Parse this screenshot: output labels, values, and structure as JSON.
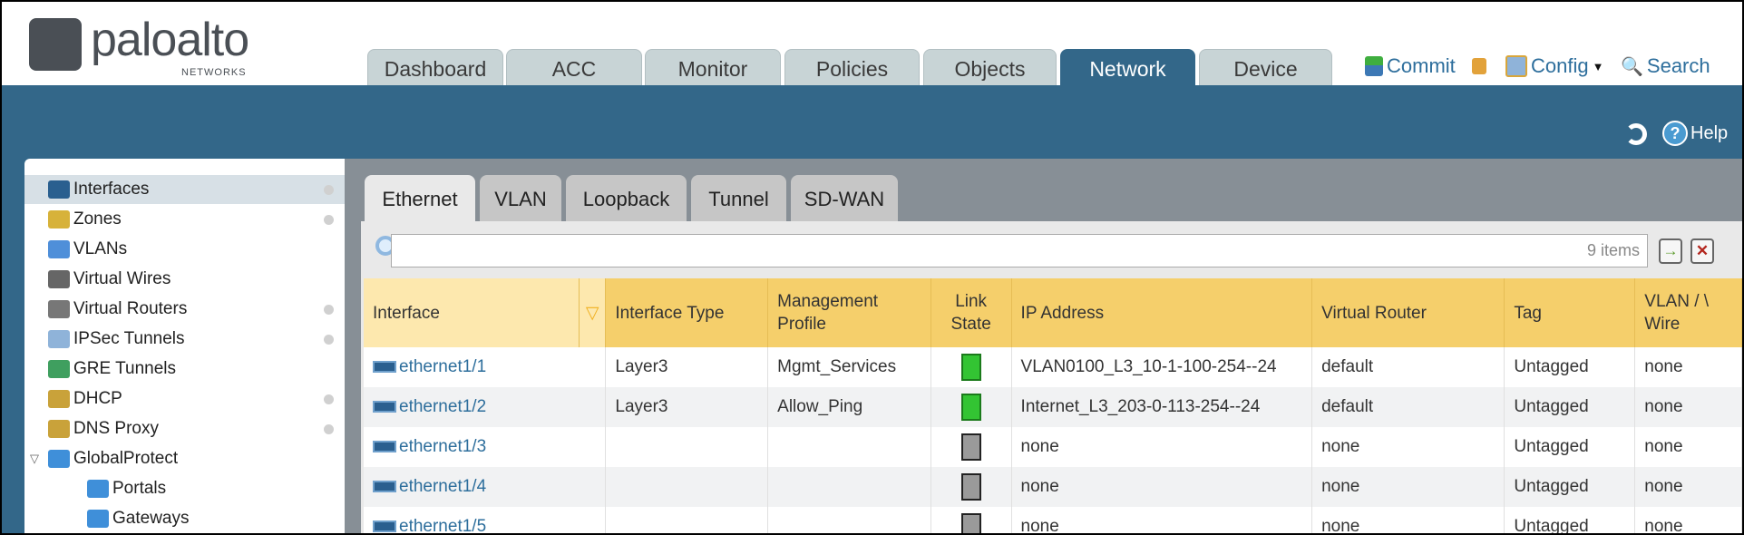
{
  "brand": {
    "name": "paloalto",
    "sub": "NETWORKS"
  },
  "top_tabs": [
    "Dashboard",
    "ACC",
    "Monitor",
    "Policies",
    "Objects",
    "Network",
    "Device"
  ],
  "active_top_tab": "Network",
  "actions": {
    "commit": "Commit",
    "config": "Config",
    "search": "Search",
    "help": "Help"
  },
  "sidebar": {
    "items": [
      {
        "label": "Interfaces",
        "icon": "interface-icon",
        "dot": true,
        "selected": true
      },
      {
        "label": "Zones",
        "icon": "zones-icon",
        "dot": true
      },
      {
        "label": "VLANs",
        "icon": "vlans-icon",
        "dot": false
      },
      {
        "label": "Virtual Wires",
        "icon": "virtual-wires-icon",
        "dot": false
      },
      {
        "label": "Virtual Routers",
        "icon": "virtual-routers-icon",
        "dot": true
      },
      {
        "label": "IPSec Tunnels",
        "icon": "ipsec-tunnels-icon",
        "dot": true
      },
      {
        "label": "GRE Tunnels",
        "icon": "gre-tunnels-icon",
        "dot": false
      },
      {
        "label": "DHCP",
        "icon": "dhcp-icon",
        "dot": true
      },
      {
        "label": "DNS Proxy",
        "icon": "dns-proxy-icon",
        "dot": true
      },
      {
        "label": "GlobalProtect",
        "icon": "globalprotect-icon",
        "dot": false,
        "expanded": true
      },
      {
        "label": "Portals",
        "icon": "portals-icon",
        "dot": false,
        "child": true
      },
      {
        "label": "Gateways",
        "icon": "gateways-icon",
        "dot": false,
        "child": true
      }
    ]
  },
  "content_tabs": [
    "Ethernet",
    "VLAN",
    "Loopback",
    "Tunnel",
    "SD-WAN"
  ],
  "active_content_tab": "Ethernet",
  "search": {
    "value": "",
    "count": "9 items"
  },
  "table": {
    "columns": [
      "Interface",
      "Interface Type",
      "Management Profile",
      "Link State",
      "IP Address",
      "Virtual Router",
      "Tag",
      "VLAN / Virtual-Wire"
    ],
    "column_labels_visible": [
      "Interface",
      "Interface Type",
      "Management\nProfile",
      "Link\nState",
      "IP Address",
      "Virtual Router",
      "Tag",
      "VLAN / \\\nWire"
    ],
    "rows": [
      {
        "interface": "ethernet1/1",
        "type": "Layer3",
        "profile": "Mgmt_Services",
        "link": "up",
        "ip": "VLAN0100_L3_10-1-100-254--24",
        "router": "default",
        "tag": "Untagged",
        "vlan": "none"
      },
      {
        "interface": "ethernet1/2",
        "type": "Layer3",
        "profile": "Allow_Ping",
        "link": "up",
        "ip": "Internet_L3_203-0-113-254--24",
        "router": "default",
        "tag": "Untagged",
        "vlan": "none"
      },
      {
        "interface": "ethernet1/3",
        "type": "",
        "profile": "",
        "link": "down",
        "ip": "none",
        "router": "none",
        "tag": "Untagged",
        "vlan": "none"
      },
      {
        "interface": "ethernet1/4",
        "type": "",
        "profile": "",
        "link": "down",
        "ip": "none",
        "router": "none",
        "tag": "Untagged",
        "vlan": "none"
      },
      {
        "interface": "ethernet1/5",
        "type": "",
        "profile": "",
        "link": "down",
        "ip": "none",
        "router": "none",
        "tag": "Untagged",
        "vlan": "none"
      }
    ]
  },
  "colors": {
    "header_blue": "#336789",
    "table_header": "#f5cf6b",
    "link": "#2d6e9c",
    "link_up": "#33c433"
  }
}
